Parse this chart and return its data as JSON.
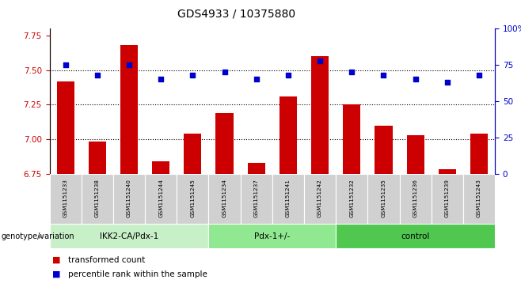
{
  "title": "GDS4933 / 10375880",
  "samples": [
    "GSM1151233",
    "GSM1151238",
    "GSM1151240",
    "GSM1151244",
    "GSM1151245",
    "GSM1151234",
    "GSM1151237",
    "GSM1151241",
    "GSM1151242",
    "GSM1151232",
    "GSM1151235",
    "GSM1151236",
    "GSM1151239",
    "GSM1151243"
  ],
  "bar_values": [
    7.42,
    6.98,
    7.68,
    6.84,
    7.04,
    7.19,
    6.83,
    7.31,
    7.6,
    7.25,
    7.1,
    7.03,
    6.78,
    7.04
  ],
  "dot_values": [
    75,
    68,
    75,
    65,
    68,
    70,
    65,
    68,
    78,
    70,
    68,
    65,
    63,
    68
  ],
  "groups": [
    {
      "label": "IKK2-CA/Pdx-1",
      "start": 0,
      "end": 5,
      "color": "#c8f0c8"
    },
    {
      "label": "Pdx-1+/-",
      "start": 5,
      "end": 9,
      "color": "#90e890"
    },
    {
      "label": "control",
      "start": 9,
      "end": 14,
      "color": "#50c850"
    }
  ],
  "bar_color": "#cc0000",
  "dot_color": "#0000cc",
  "ylim_left": [
    6.75,
    7.8
  ],
  "ylim_right": [
    0,
    100
  ],
  "yticks_left": [
    6.75,
    7.0,
    7.25,
    7.5,
    7.75
  ],
  "yticks_right": [
    0,
    25,
    50,
    75,
    100
  ],
  "ytick_labels_right": [
    "0",
    "25",
    "50",
    "75",
    "100%"
  ],
  "hlines": [
    7.0,
    7.25,
    7.5
  ],
  "genotype_label": "genotype/variation",
  "legend": [
    {
      "color": "#cc0000",
      "label": "transformed count"
    },
    {
      "color": "#0000cc",
      "label": "percentile rank within the sample"
    }
  ],
  "background_color": "#ffffff",
  "tick_area_color": "#d0d0d0",
  "title_fontsize": 10
}
